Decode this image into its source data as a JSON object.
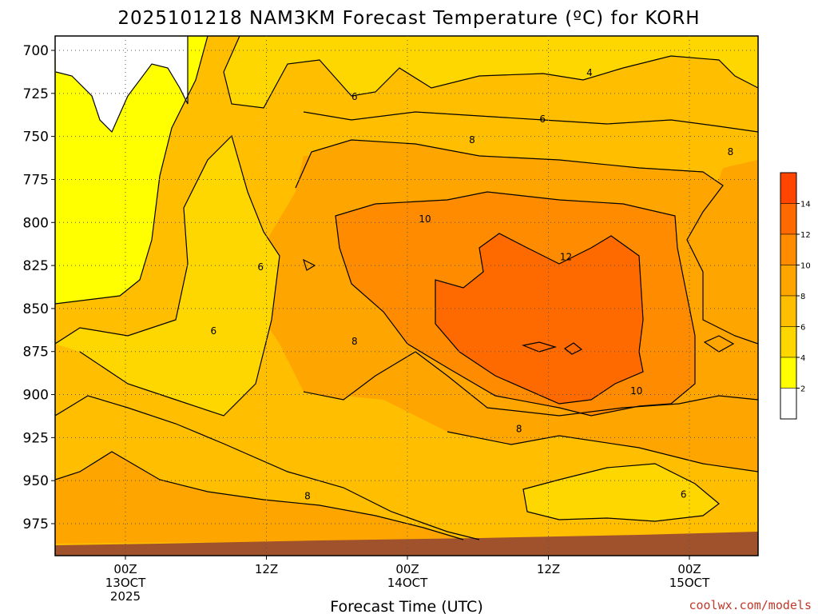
{
  "title": "2025101218 NAM3KM Forecast Temperature (ºC) for KORH",
  "credit": "coolwx.com/models",
  "chart_data": {
    "type": "heatmap",
    "title": "2025101218 NAM3KM Forecast Temperature (ºC) for KORH",
    "xlabel": "Forecast Time (UTC)",
    "ylabel": "",
    "x_range_hours": [
      -6,
      54
    ],
    "y_range_hpa": [
      700,
      990
    ],
    "y_ticks": [
      "700",
      "725",
      "750",
      "775",
      "800",
      "825",
      "850",
      "875",
      "900",
      "925",
      "950",
      "975"
    ],
    "x_ticks": [
      {
        "hour": 0,
        "lines": [
          "00Z",
          "13OCT",
          "2025"
        ]
      },
      {
        "hour": 12,
        "lines": [
          "12Z"
        ]
      },
      {
        "hour": 24,
        "lines": [
          "00Z",
          "14OCT"
        ]
      },
      {
        "hour": 36,
        "lines": [
          "12Z"
        ]
      },
      {
        "hour": 48,
        "lines": [
          "00Z",
          "15OCT"
        ]
      }
    ],
    "colorbar": {
      "levels": [
        2,
        4,
        6,
        8,
        10,
        12,
        14
      ],
      "colors": [
        "#ffffff",
        "#ffff00",
        "#ffd700",
        "#ffbf00",
        "#ffa500",
        "#ff8c00",
        "#ff6a00",
        "#ff4500"
      ],
      "labels": [
        "2",
        "4",
        "6",
        "8",
        "10",
        "12",
        "14"
      ]
    },
    "contour_labels": [
      {
        "text": "4",
        "hour": 39.5,
        "hpa": 713
      },
      {
        "text": "6",
        "hour": 19.5,
        "hpa": 727
      },
      {
        "text": "6",
        "hour": 35.5,
        "hpa": 740
      },
      {
        "text": "8",
        "hour": 29.5,
        "hpa": 752
      },
      {
        "text": "8",
        "hour": 51.5,
        "hpa": 759
      },
      {
        "text": "10",
        "hour": 25.5,
        "hpa": 798
      },
      {
        "text": "12",
        "hour": 37.5,
        "hpa": 820
      },
      {
        "text": "6",
        "hour": 11.5,
        "hpa": 826
      },
      {
        "text": "6",
        "hour": 7.5,
        "hpa": 863
      },
      {
        "text": "8",
        "hour": 19.5,
        "hpa": 869
      },
      {
        "text": "10",
        "hour": 43.5,
        "hpa": 898
      },
      {
        "text": "8",
        "hour": 33.5,
        "hpa": 920
      },
      {
        "text": "8",
        "hour": 15.5,
        "hpa": 959
      },
      {
        "text": "6",
        "hour": 47.5,
        "hpa": 958
      }
    ],
    "grid": true
  }
}
